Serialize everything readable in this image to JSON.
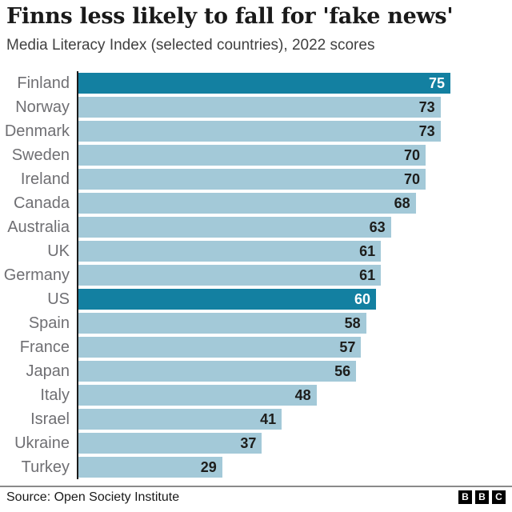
{
  "header": {
    "title": "Finns less likely to fall for 'fake news'",
    "subtitle": "Media Literacy Index (selected countries), 2022 scores"
  },
  "chart_data": {
    "type": "bar",
    "orientation": "horizontal",
    "title": "Finns less likely to fall for 'fake news'",
    "subtitle": "Media Literacy Index (selected countries), 2022 scores",
    "value_axis": {
      "min": 0,
      "max": 75,
      "gridlines": false,
      "tick_labels_shown": false
    },
    "categories": [
      "Finland",
      "Norway",
      "Denmark",
      "Sweden",
      "Ireland",
      "Canada",
      "Australia",
      "UK",
      "Germany",
      "US",
      "Spain",
      "France",
      "Japan",
      "Italy",
      "Israel",
      "Ukraine",
      "Turkey"
    ],
    "values": [
      75,
      73,
      73,
      70,
      70,
      68,
      63,
      61,
      61,
      60,
      58,
      57,
      56,
      48,
      41,
      37,
      29
    ],
    "highlighted": [
      "Finland",
      "US"
    ],
    "items": [
      {
        "country": "Finland",
        "value": 75,
        "highlight": true
      },
      {
        "country": "Norway",
        "value": 73,
        "highlight": false
      },
      {
        "country": "Denmark",
        "value": 73,
        "highlight": false
      },
      {
        "country": "Sweden",
        "value": 70,
        "highlight": false
      },
      {
        "country": "Ireland",
        "value": 70,
        "highlight": false
      },
      {
        "country": "Canada",
        "value": 68,
        "highlight": false
      },
      {
        "country": "Australia",
        "value": 63,
        "highlight": false
      },
      {
        "country": "UK",
        "value": 61,
        "highlight": false
      },
      {
        "country": "Germany",
        "value": 61,
        "highlight": false
      },
      {
        "country": "US",
        "value": 60,
        "highlight": true
      },
      {
        "country": "Spain",
        "value": 58,
        "highlight": false
      },
      {
        "country": "France",
        "value": 57,
        "highlight": false
      },
      {
        "country": "Japan",
        "value": 56,
        "highlight": false
      },
      {
        "country": "Italy",
        "value": 48,
        "highlight": false
      },
      {
        "country": "Israel",
        "value": 41,
        "highlight": false
      },
      {
        "country": "Ukraine",
        "value": 37,
        "highlight": false
      },
      {
        "country": "Turkey",
        "value": 29,
        "highlight": false
      }
    ],
    "colors": {
      "bar_highlight": "#1380A1",
      "bar_normal": "#A3C9D8",
      "value_on_highlight": "#ffffff",
      "value_on_normal": "#1d1d1b",
      "axis_line": "#1a1a1a"
    },
    "legend": null
  },
  "footer": {
    "source": "Source: Open Society Institute",
    "logo_letters": [
      "B",
      "B",
      "C"
    ]
  }
}
